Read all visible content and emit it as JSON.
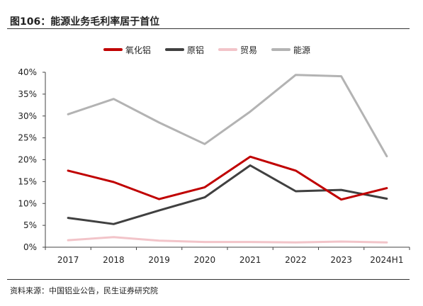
{
  "figure": {
    "title": "图106：能源业务毛利率居于首位",
    "source": "资料来源：中国铝业公告，民生证券研究院"
  },
  "chart_data": {
    "type": "line",
    "categories": [
      "2017",
      "2018",
      "2019",
      "2020",
      "2021",
      "2022",
      "2023",
      "2024H1"
    ],
    "series": [
      {
        "name": "氧化铝",
        "color": "#c00000",
        "values": [
          17.5,
          14.9,
          11.0,
          13.7,
          20.7,
          17.5,
          10.9,
          13.5
        ]
      },
      {
        "name": "原铝",
        "color": "#404040",
        "values": [
          6.7,
          5.3,
          8.4,
          11.4,
          18.7,
          12.8,
          13.1,
          11.1
        ]
      },
      {
        "name": "贸易",
        "color": "#f2c4c9",
        "values": [
          1.6,
          2.3,
          1.5,
          1.2,
          1.2,
          1.1,
          1.3,
          1.1
        ]
      },
      {
        "name": "能源",
        "color": "#b3b3b3",
        "values": [
          30.4,
          33.9,
          28.5,
          23.6,
          31.0,
          39.4,
          39.1,
          20.8
        ]
      }
    ],
    "ylim": [
      0,
      40
    ],
    "yticks": [
      "0%",
      "5%",
      "10%",
      "15%",
      "20%",
      "25%",
      "30%",
      "35%",
      "40%"
    ],
    "grid": false,
    "legend_position": "top-center"
  }
}
